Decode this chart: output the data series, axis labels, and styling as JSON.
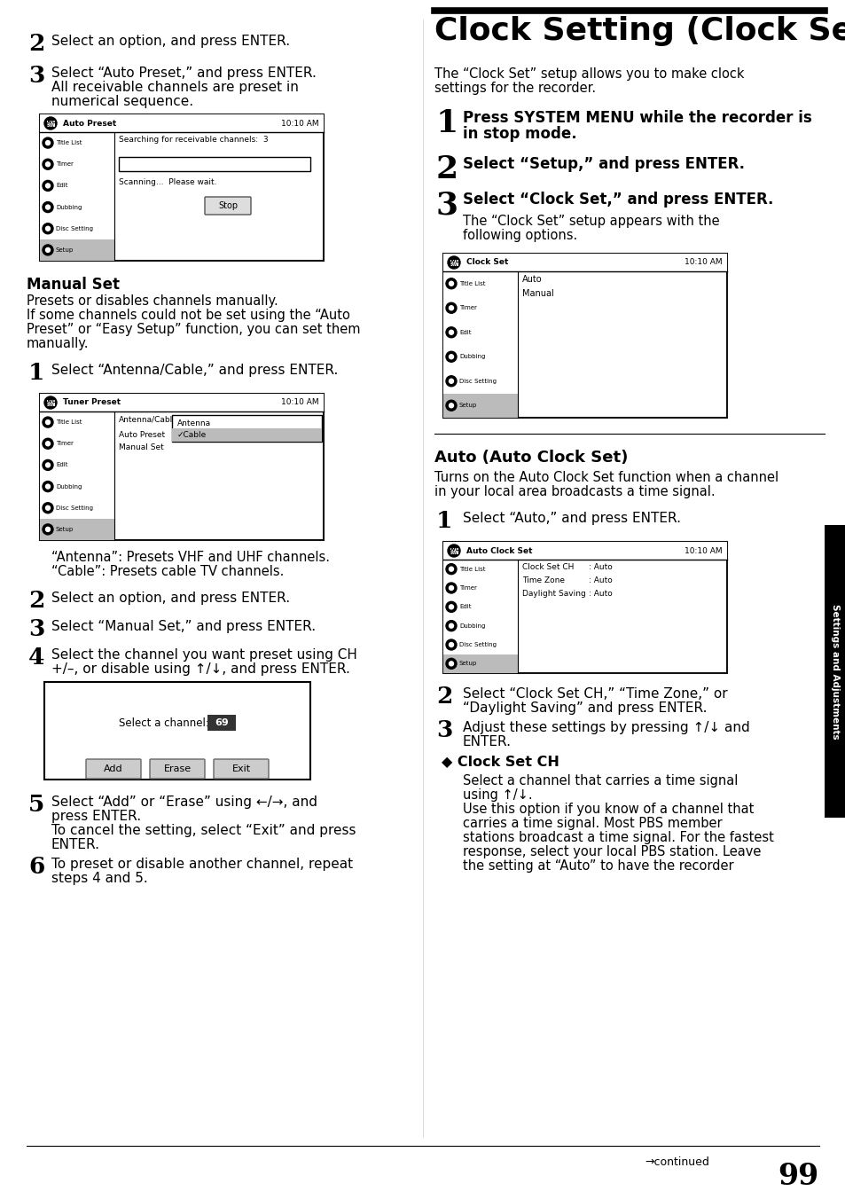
{
  "page_bg": "#ffffff",
  "title": "Clock Setting (Clock Set)",
  "footer_page": "99",
  "footer_continued": "→continued",
  "footer_section": "Settings and Adjustments",
  "time": "10:10 AM"
}
